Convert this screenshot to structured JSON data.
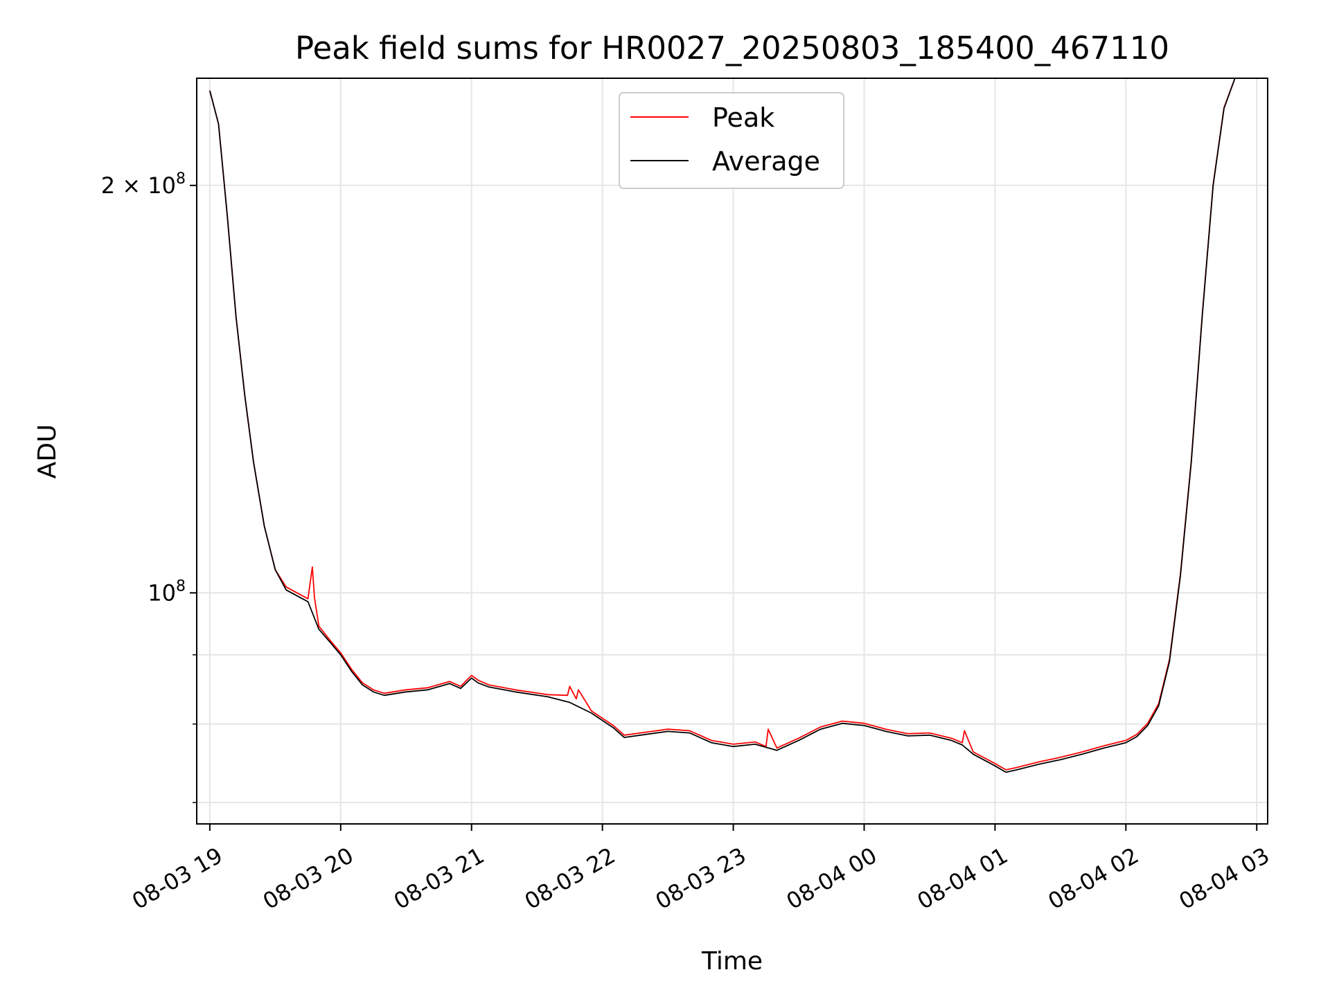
{
  "chart_data": {
    "type": "line",
    "title": "Peak field sums for HR0027_20250803_185400_467110",
    "xlabel": "Time",
    "ylabel": "ADU",
    "x_type": "datetime",
    "xlim": [
      "2025-08-03 18:54",
      "2025-08-04 03:05"
    ],
    "ylim": [
      67500000,
      240000000
    ],
    "yscale": "log",
    "grid": true,
    "legend_position": "top-center",
    "x_ticks": [
      {
        "value": "2025-08-03 19:00",
        "label": "08-03 19"
      },
      {
        "value": "2025-08-03 20:00",
        "label": "08-03 20"
      },
      {
        "value": "2025-08-03 21:00",
        "label": "08-03 21"
      },
      {
        "value": "2025-08-03 22:00",
        "label": "08-03 22"
      },
      {
        "value": "2025-08-03 23:00",
        "label": "08-03 23"
      },
      {
        "value": "2025-08-04 00:00",
        "label": "08-04 00"
      },
      {
        "value": "2025-08-04 01:00",
        "label": "08-04 01"
      },
      {
        "value": "2025-08-04 02:00",
        "label": "08-04 02"
      },
      {
        "value": "2025-08-04 03:00",
        "label": "08-04 03"
      }
    ],
    "y_ticks": [
      {
        "value": 100000000,
        "mantissa": "",
        "base": "10",
        "exp": "8"
      },
      {
        "value": 200000000,
        "mantissa": "2 × ",
        "base": "10",
        "exp": "8"
      }
    ],
    "y_minor_ticks": [
      70000000,
      80000000,
      90000000
    ],
    "colors": {
      "peak": "#ff0000",
      "average": "#000000",
      "grid": "#e6e6e6"
    },
    "series": [
      {
        "name": "Average",
        "x": [
          "2025-08-03 19:00",
          "2025-08-03 19:04",
          "2025-08-03 19:08",
          "2025-08-03 19:12",
          "2025-08-03 19:16",
          "2025-08-03 19:20",
          "2025-08-03 19:25",
          "2025-08-03 19:30",
          "2025-08-03 19:35",
          "2025-08-03 19:40",
          "2025-08-03 19:45",
          "2025-08-03 19:50",
          "2025-08-03 19:55",
          "2025-08-03 20:00",
          "2025-08-03 20:05",
          "2025-08-03 20:10",
          "2025-08-03 20:15",
          "2025-08-03 20:20",
          "2025-08-03 20:30",
          "2025-08-03 20:40",
          "2025-08-03 20:50",
          "2025-08-03 20:55",
          "2025-08-03 21:00",
          "2025-08-03 21:03",
          "2025-08-03 21:08",
          "2025-08-03 21:20",
          "2025-08-03 21:35",
          "2025-08-03 21:45",
          "2025-08-03 21:55",
          "2025-08-03 22:05",
          "2025-08-03 22:10",
          "2025-08-03 22:20",
          "2025-08-03 22:30",
          "2025-08-03 22:40",
          "2025-08-03 22:50",
          "2025-08-03 23:00",
          "2025-08-03 23:10",
          "2025-08-03 23:20",
          "2025-08-03 23:30",
          "2025-08-03 23:40",
          "2025-08-03 23:50",
          "2025-08-04 00:00",
          "2025-08-04 00:10",
          "2025-08-04 00:20",
          "2025-08-04 00:30",
          "2025-08-04 00:40",
          "2025-08-04 00:45",
          "2025-08-04 00:50",
          "2025-08-04 01:00",
          "2025-08-04 01:05",
          "2025-08-04 01:10",
          "2025-08-04 01:20",
          "2025-08-04 01:30",
          "2025-08-04 01:40",
          "2025-08-04 01:50",
          "2025-08-04 02:00",
          "2025-08-04 02:05",
          "2025-08-04 02:10",
          "2025-08-04 02:15",
          "2025-08-04 02:20",
          "2025-08-04 02:25",
          "2025-08-04 02:30",
          "2025-08-04 02:35",
          "2025-08-04 02:40",
          "2025-08-04 02:45",
          "2025-08-04 02:50",
          "2025-08-04 02:54"
        ],
        "y": [
          235000000,
          222000000,
          190000000,
          160000000,
          140000000,
          125000000,
          112000000,
          104000000,
          100500000,
          99500000,
          98500000,
          94000000,
          92000000,
          90000000,
          87500000,
          85500000,
          84500000,
          84000000,
          84500000,
          84800000,
          85700000,
          85000000,
          86500000,
          85800000,
          85200000,
          84500000,
          83800000,
          83000000,
          81500000,
          79500000,
          78200000,
          78600000,
          79000000,
          78800000,
          77500000,
          77000000,
          77300000,
          76500000,
          77800000,
          79300000,
          80100000,
          79800000,
          79000000,
          78400000,
          78500000,
          77800000,
          77200000,
          76000000,
          74500000,
          73700000,
          74000000,
          74700000,
          75300000,
          76000000,
          76800000,
          77500000,
          78300000,
          79800000,
          82500000,
          89000000,
          103000000,
          125000000,
          160000000,
          200000000,
          228000000,
          240000000,
          240000000
        ]
      },
      {
        "name": "Peak",
        "x": [
          "2025-08-03 19:00",
          "2025-08-03 19:04",
          "2025-08-03 19:08",
          "2025-08-03 19:12",
          "2025-08-03 19:16",
          "2025-08-03 19:20",
          "2025-08-03 19:25",
          "2025-08-03 19:30",
          "2025-08-03 19:35",
          "2025-08-03 19:40",
          "2025-08-03 19:45",
          "2025-08-03 19:47",
          "2025-08-03 19:48",
          "2025-08-03 19:50",
          "2025-08-03 19:55",
          "2025-08-03 20:00",
          "2025-08-03 20:05",
          "2025-08-03 20:10",
          "2025-08-03 20:15",
          "2025-08-03 20:20",
          "2025-08-03 20:30",
          "2025-08-03 20:40",
          "2025-08-03 20:50",
          "2025-08-03 20:55",
          "2025-08-03 21:00",
          "2025-08-03 21:03",
          "2025-08-03 21:08",
          "2025-08-03 21:20",
          "2025-08-03 21:35",
          "2025-08-03 21:44",
          "2025-08-03 21:45",
          "2025-08-03 21:48",
          "2025-08-03 21:49",
          "2025-08-03 21:55",
          "2025-08-03 22:05",
          "2025-08-03 22:10",
          "2025-08-03 22:20",
          "2025-08-03 22:30",
          "2025-08-03 22:40",
          "2025-08-03 22:50",
          "2025-08-03 23:00",
          "2025-08-03 23:10",
          "2025-08-03 23:15",
          "2025-08-03 23:16",
          "2025-08-03 23:20",
          "2025-08-03 23:30",
          "2025-08-03 23:40",
          "2025-08-03 23:50",
          "2025-08-04 00:00",
          "2025-08-04 00:10",
          "2025-08-04 00:20",
          "2025-08-04 00:30",
          "2025-08-04 00:40",
          "2025-08-04 00:45",
          "2025-08-04 00:46",
          "2025-08-04 00:50",
          "2025-08-04 01:00",
          "2025-08-04 01:05",
          "2025-08-04 01:10",
          "2025-08-04 01:20",
          "2025-08-04 01:30",
          "2025-08-04 01:40",
          "2025-08-04 01:50",
          "2025-08-04 02:00",
          "2025-08-04 02:05",
          "2025-08-04 02:10",
          "2025-08-04 02:15",
          "2025-08-04 02:20",
          "2025-08-04 02:25",
          "2025-08-04 02:30",
          "2025-08-04 02:35",
          "2025-08-04 02:40",
          "2025-08-04 02:45",
          "2025-08-04 02:50",
          "2025-08-04 02:54"
        ],
        "y": [
          235000000,
          222000000,
          190000000,
          160000000,
          140000000,
          125000000,
          112000000,
          104000000,
          101000000,
          100000000,
          99000000,
          104500000,
          99200000,
          94500000,
          92300000,
          90300000,
          87800000,
          85800000,
          84800000,
          84300000,
          84800000,
          85100000,
          86000000,
          85300000,
          86900000,
          86200000,
          85500000,
          84800000,
          84100000,
          84000000,
          85300000,
          83500000,
          84800000,
          81800000,
          79800000,
          78500000,
          78900000,
          79300000,
          79100000,
          77800000,
          77300000,
          77600000,
          77000000,
          79300000,
          76800000,
          78100000,
          79600000,
          80400000,
          80100000,
          79300000,
          78700000,
          78800000,
          78100000,
          77500000,
          79100000,
          76300000,
          74800000,
          74000000,
          74300000,
          75000000,
          75600000,
          76300000,
          77100000,
          77800000,
          78600000,
          80100000,
          82800000,
          89300000,
          103300000,
          125300000,
          160300000,
          200300000,
          228300000,
          240000000,
          240000000
        ]
      }
    ]
  }
}
